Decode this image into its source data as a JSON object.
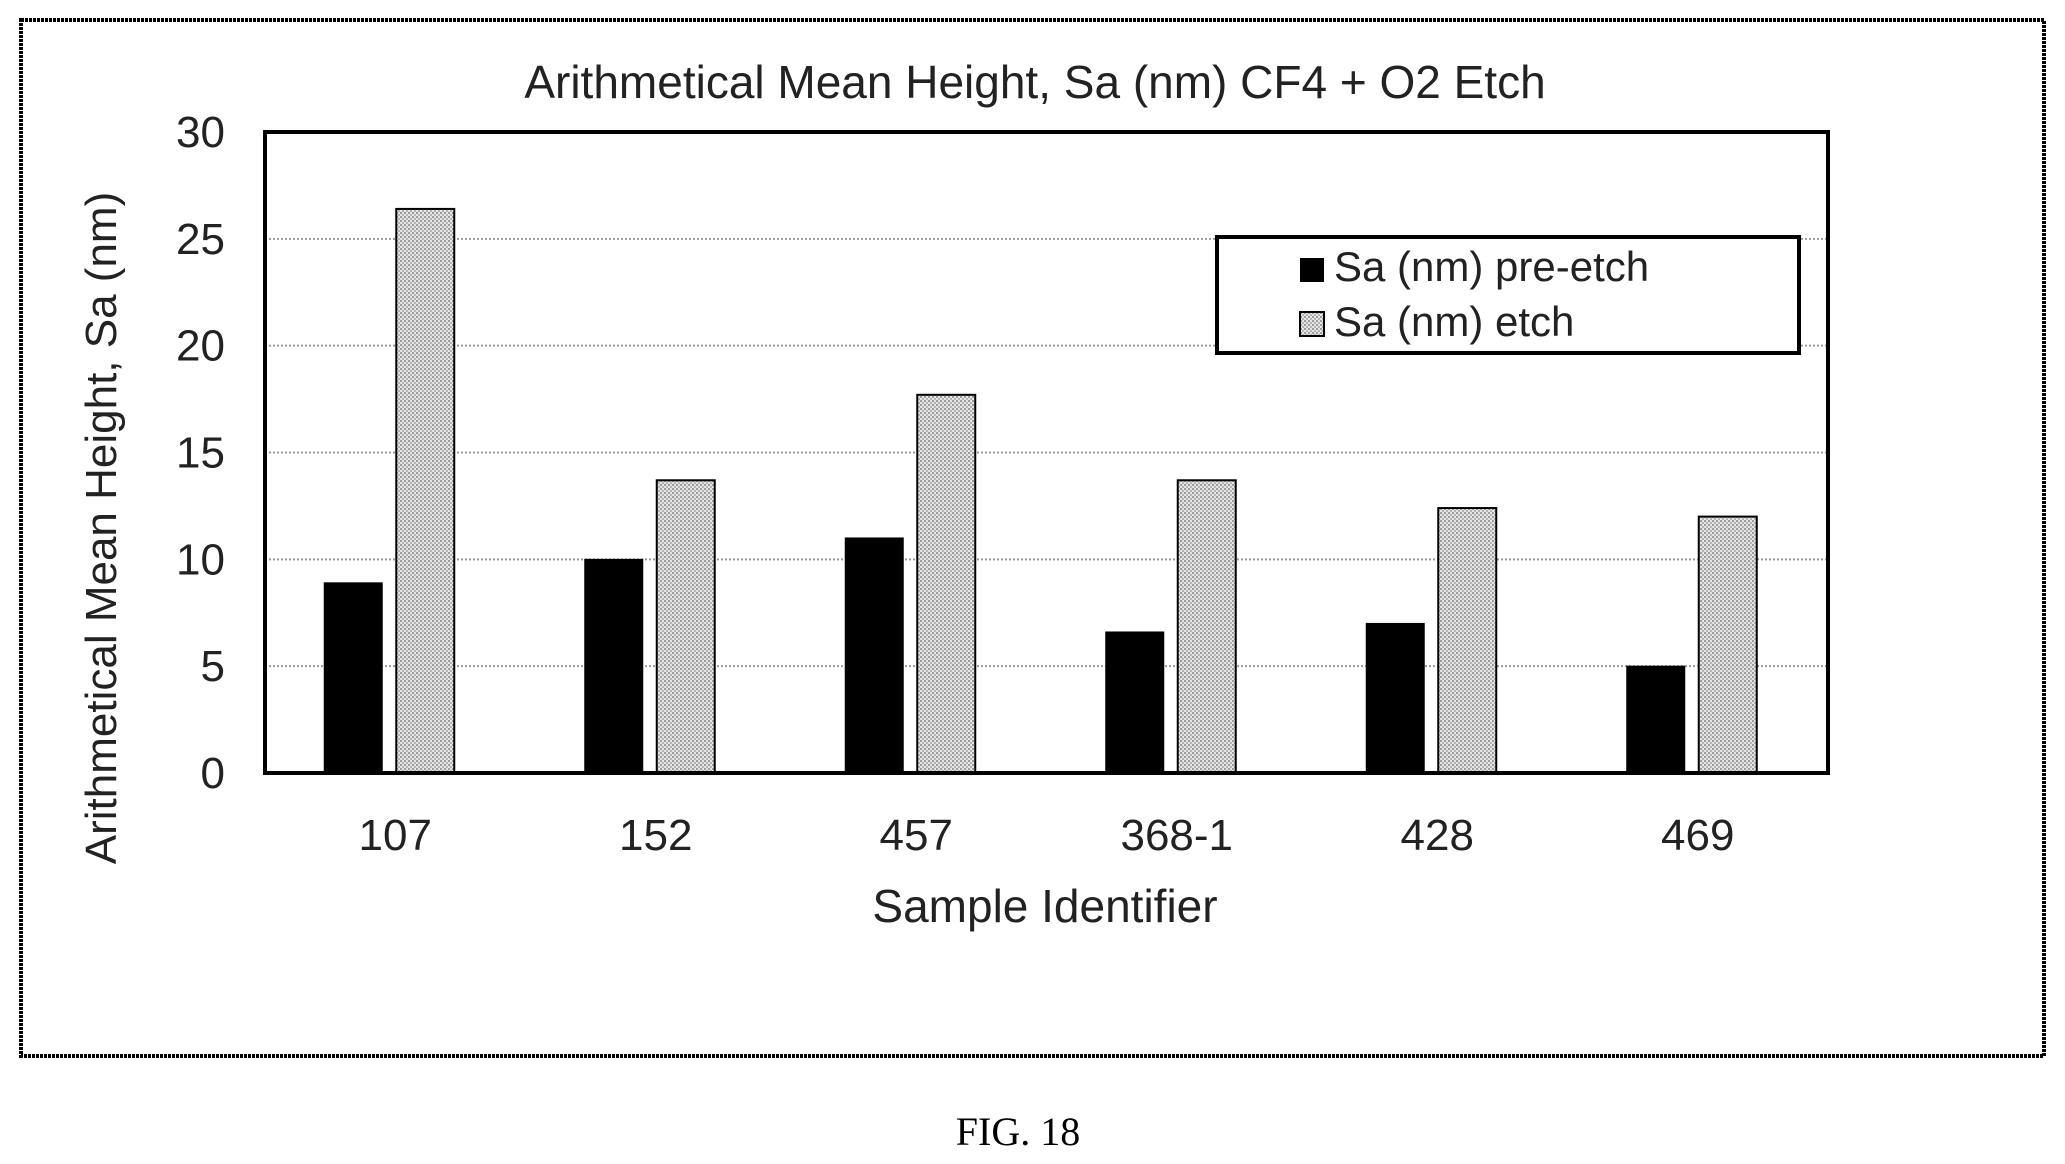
{
  "figure_label": "FIG. 18",
  "legend": {
    "items": [
      {
        "label": "Sa (nm) pre-etch",
        "swatch": "solid-black"
      },
      {
        "label": "Sa (nm) etch",
        "swatch": "dotted-gray"
      }
    ]
  },
  "colors": {
    "pre_etch": "#000000",
    "etch": "#d4d4d4",
    "gridline": "#9a9a9a",
    "border": "#000000"
  },
  "chart_data": {
    "type": "bar",
    "title": "Arithmetical Mean Height, Sa (nm) CF4 + O2 Etch",
    "xlabel": "Sample Identifier",
    "ylabel": "Arithmetical Mean Height, Sa (nm)",
    "categories": [
      "107",
      "152",
      "457",
      "368-1",
      "428",
      "469"
    ],
    "series": [
      {
        "name": "Sa (nm) pre-etch",
        "values": [
          8.9,
          10.0,
          11.0,
          6.6,
          7.0,
          5.0
        ]
      },
      {
        "name": "Sa (nm) etch",
        "values": [
          26.4,
          13.7,
          17.7,
          13.7,
          12.4,
          12.0
        ]
      }
    ],
    "ylim": [
      0,
      30
    ],
    "yticks": [
      0,
      5,
      10,
      15,
      20,
      25,
      30
    ],
    "grid": true,
    "legend_position": "top-right"
  }
}
